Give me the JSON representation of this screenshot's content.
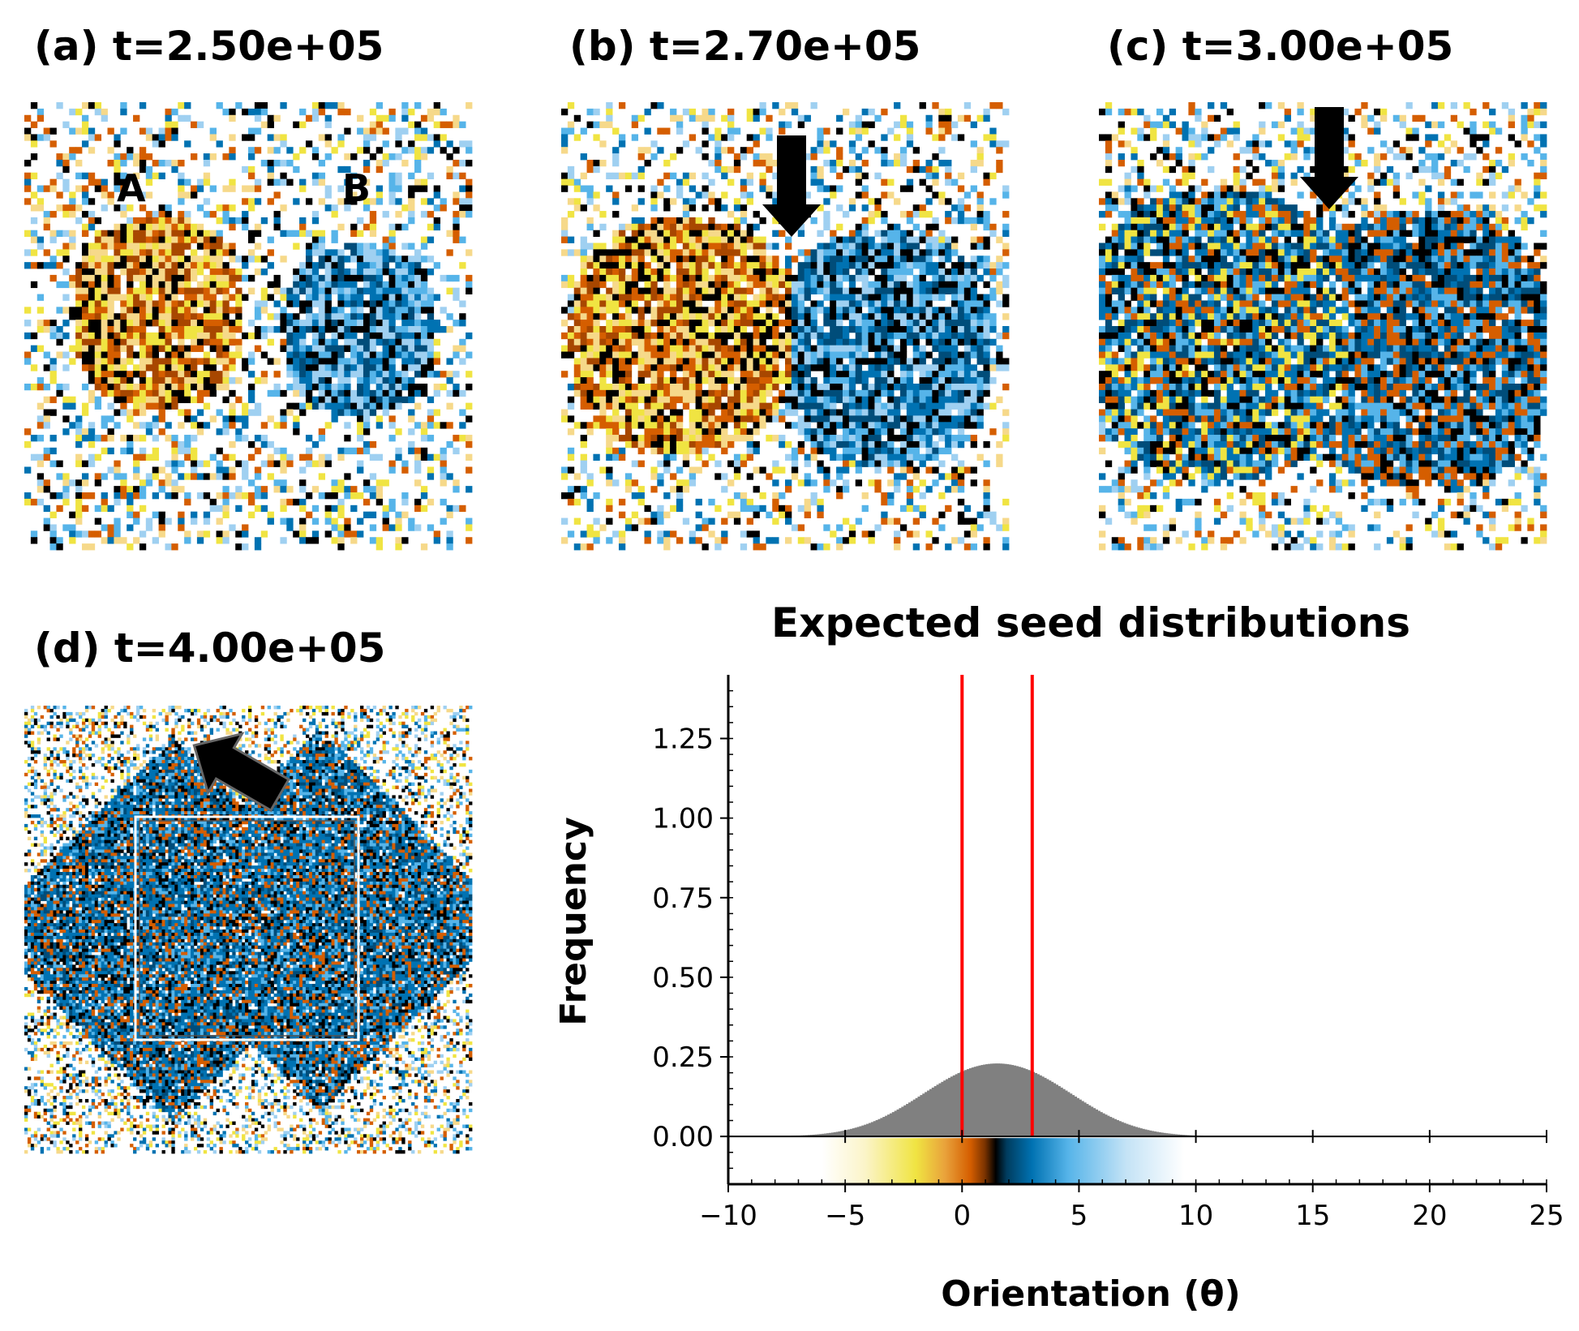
{
  "panels": [
    {
      "id": "a",
      "title": "(a)  t=2.50e+05",
      "labels": [
        "A",
        "B"
      ]
    },
    {
      "id": "b",
      "title": "(b)  t=2.70e+05"
    },
    {
      "id": "c",
      "title": "(c)  t=3.00e+05"
    },
    {
      "id": "d",
      "title": "(d)  t=4.00e+05"
    }
  ],
  "chart_data": {
    "type": "bar",
    "title": "Expected seed distributions",
    "xlabel": "Orientation (θ)",
    "ylabel": "Frequency",
    "xlim": [
      -10,
      25
    ],
    "ylim": [
      -0.15,
      1.45
    ],
    "xticks": [
      -10,
      -5,
      0,
      5,
      10,
      15,
      20,
      25
    ],
    "xtick_labels": [
      "−10",
      "−5",
      "0",
      "5",
      "10",
      "15",
      "20",
      "25"
    ],
    "yticks": [
      0.0,
      0.25,
      0.5,
      0.75,
      1.0,
      1.25
    ],
    "ytick_labels": [
      "0.00",
      "0.25",
      "0.50",
      "0.75",
      "1.00",
      "1.25"
    ],
    "histogram": {
      "color": "#808080",
      "components": [
        {
          "mean": 0,
          "sd": 2.5,
          "weight": 8.6
        },
        {
          "mean": 3,
          "sd": 2.5,
          "weight": 8.6
        }
      ],
      "range": [
        -10,
        13
      ],
      "bin_width": 0.1
    },
    "vlines": [
      {
        "x": 0,
        "color": "#ff0000"
      },
      {
        "x": 3,
        "color": "#ff0000"
      }
    ],
    "colorbar_range": [
      -6,
      9.5
    ],
    "colors": {
      "orange": "#d55e00",
      "yellow": "#f0e442",
      "blue": "#0072b2",
      "sky": "#56b4e9",
      "black": "#000000"
    }
  }
}
